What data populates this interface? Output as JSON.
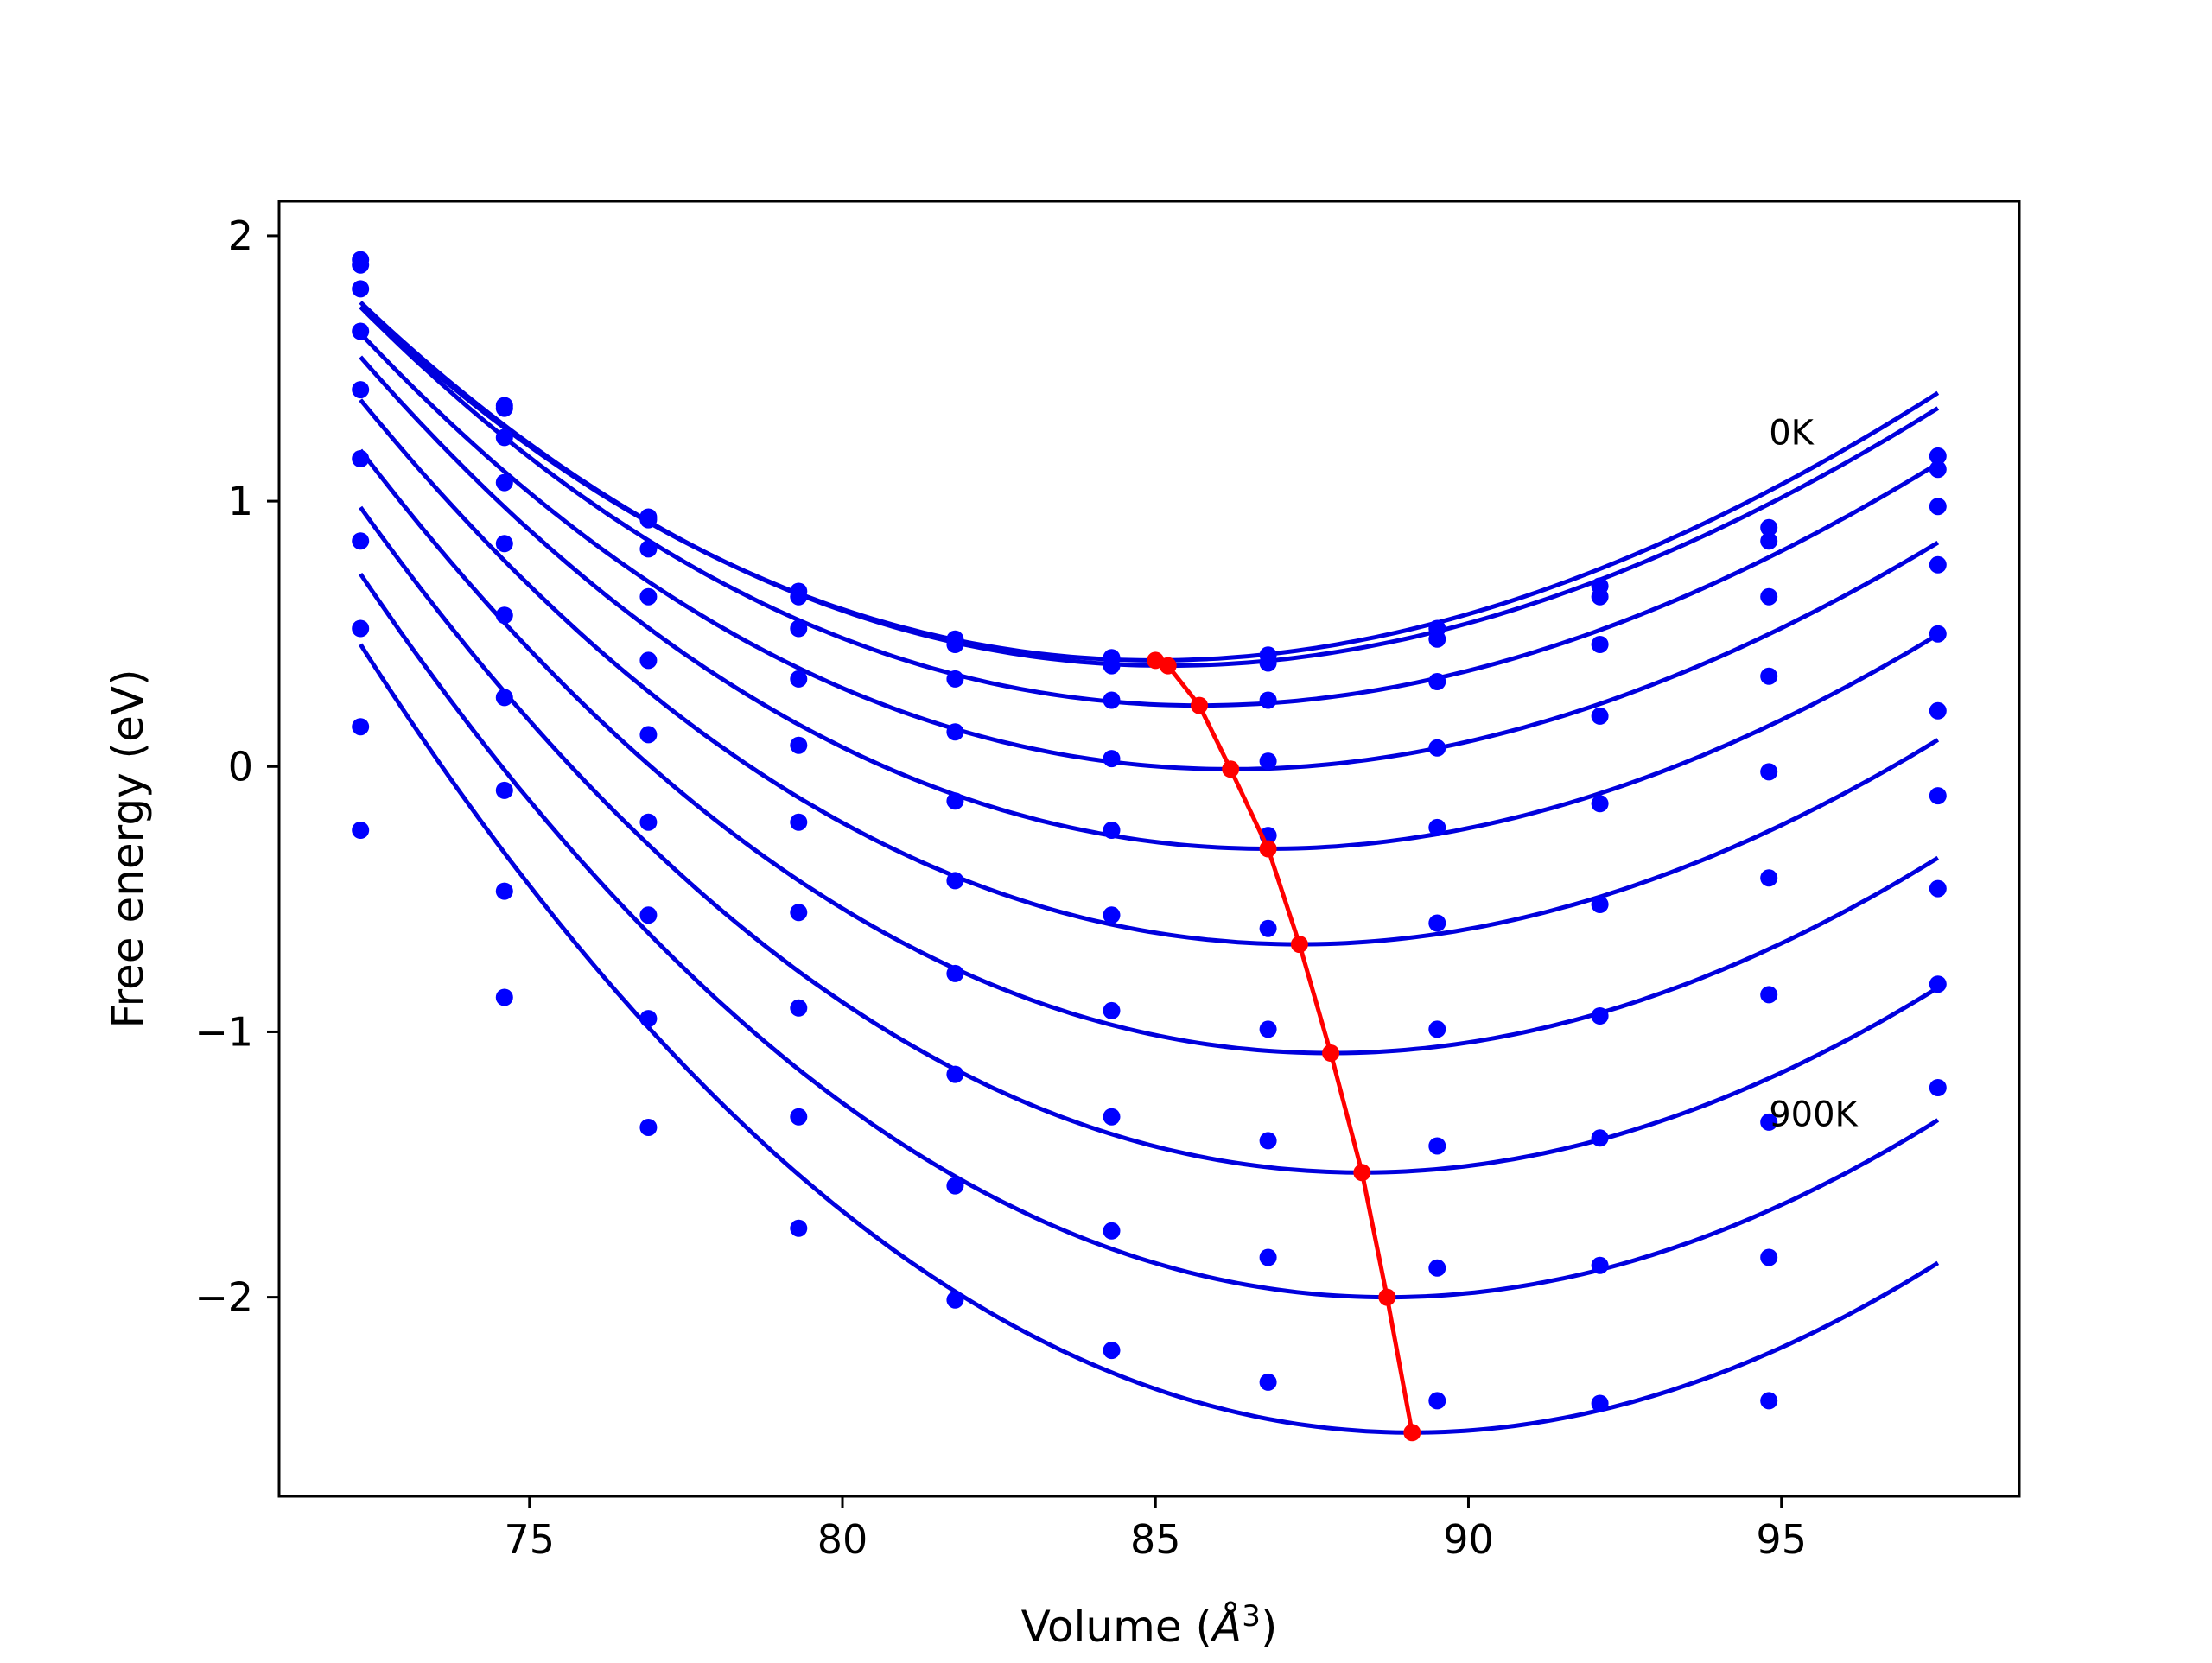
{
  "chart_data": {
    "type": "scatter",
    "title": "",
    "xlabel": "Volume (",
    "xlabel_unit": "Å",
    "xlabel_exponent": "3",
    "xlabel_close": ")",
    "ylabel": "Free energy (eV)",
    "xlim": [
      71.0,
      98.8
    ],
    "ylim": [
      -2.75,
      2.13
    ],
    "x_ticks": [
      75,
      80,
      85,
      90,
      95
    ],
    "x_tick_labels": [
      "75",
      "80",
      "85",
      "90",
      "95"
    ],
    "y_ticks": [
      2,
      1,
      0,
      -1,
      -2
    ],
    "y_tick_labels": [
      "2",
      "1",
      "0",
      "−1",
      "−2"
    ],
    "grid": false,
    "legend": "none",
    "annotations": [
      {
        "text": "0K",
        "x": 94.8,
        "y": 1.25
      },
      {
        "text": "900K",
        "x": 94.8,
        "y": -1.32
      }
    ],
    "colors": {
      "series": "#0000ff",
      "fit": "#0000dd",
      "minima": "#ff0000"
    },
    "volumes": [
      72.3,
      74.6,
      76.9,
      79.3,
      81.8,
      84.3,
      86.8,
      89.5,
      92.1,
      94.8,
      97.5
    ],
    "series": [
      {
        "fit": {
          "v0": 85.0,
          "f0": 0.4,
          "k": 0.00735,
          "c": -7.2e-05
        },
        "points": [
          1.91,
          1.36,
          0.94,
          0.66,
          0.48,
          0.41,
          0.42,
          0.52,
          0.68,
          0.9,
          1.17
        ]
      },
      {
        "fit": {
          "v0": 85.2,
          "f0": 0.38,
          "k": 0.0073,
          "c": -7.2e-05
        },
        "points": [
          1.89,
          1.35,
          0.93,
          0.64,
          0.46,
          0.38,
          0.39,
          0.48,
          0.64,
          0.85,
          1.12
        ]
      },
      {
        "fit": {
          "v0": 85.7,
          "f0": 0.23,
          "k": 0.0074,
          "c": -7.2e-05
        },
        "points": [
          1.8,
          1.24,
          0.82,
          0.52,
          0.33,
          0.25,
          0.25,
          0.32,
          0.46,
          0.64,
          0.98
        ]
      },
      {
        "fit": {
          "v0": 86.2,
          "f0": -0.01,
          "k": 0.0075,
          "c": -7.2e-05
        },
        "points": [
          1.64,
          1.07,
          0.64,
          0.33,
          0.13,
          0.03,
          0.02,
          0.07,
          0.19,
          0.34,
          0.76
        ]
      },
      {
        "fit": {
          "v0": 86.8,
          "f0": -0.31,
          "k": 0.0078,
          "c": -7e-05
        },
        "points": [
          1.42,
          0.84,
          0.4,
          0.08,
          -0.13,
          -0.24,
          -0.26,
          -0.23,
          -0.14,
          -0.02,
          0.5
        ]
      },
      {
        "fit": {
          "v0": 87.3,
          "f0": -0.67,
          "k": 0.0081,
          "c": -6.8e-05
        },
        "points": [
          1.16,
          0.57,
          0.12,
          -0.21,
          -0.43,
          -0.56,
          -0.61,
          -0.59,
          -0.52,
          -0.42,
          0.21
        ]
      },
      {
        "fit": {
          "v0": 87.8,
          "f0": -1.08,
          "k": 0.00845,
          "c": -6.5e-05
        },
        "points": [
          0.85,
          0.26,
          -0.21,
          -0.55,
          -0.78,
          -0.92,
          -0.99,
          -0.99,
          -0.94,
          -0.86,
          -0.11
        ]
      },
      {
        "fit": {
          "v0": 88.3,
          "f0": -1.53,
          "k": 0.0088,
          "c": -6.2e-05
        },
        "points": [
          0.52,
          -0.09,
          -0.56,
          -0.91,
          -1.16,
          -1.32,
          -1.41,
          -1.43,
          -1.4,
          -1.34,
          -0.46
        ]
      },
      {
        "fit": {
          "v0": 88.7,
          "f0": -2.0,
          "k": 0.00915,
          "c": -6e-05
        },
        "points": [
          0.15,
          -0.47,
          -0.95,
          -1.32,
          -1.58,
          -1.75,
          -1.85,
          -1.89,
          -1.88,
          -1.85,
          -0.82
        ]
      },
      {
        "fit": {
          "v0": 89.1,
          "f0": -2.51,
          "k": 0.00955,
          "c": -5.8e-05
        },
        "points": [
          -0.24,
          -0.87,
          -1.36,
          -1.74,
          -2.01,
          -2.2,
          -2.32,
          -2.39,
          -2.4,
          -2.39,
          -1.21
        ]
      }
    ],
    "minima": {
      "x": [
        85.0,
        85.2,
        85.7,
        86.2,
        86.8,
        87.3,
        87.8,
        88.3,
        88.7,
        89.1
      ],
      "y": [
        0.4,
        0.38,
        0.23,
        -0.01,
        -0.31,
        -0.67,
        -1.08,
        -1.53,
        -2.0,
        -2.51
      ]
    }
  }
}
